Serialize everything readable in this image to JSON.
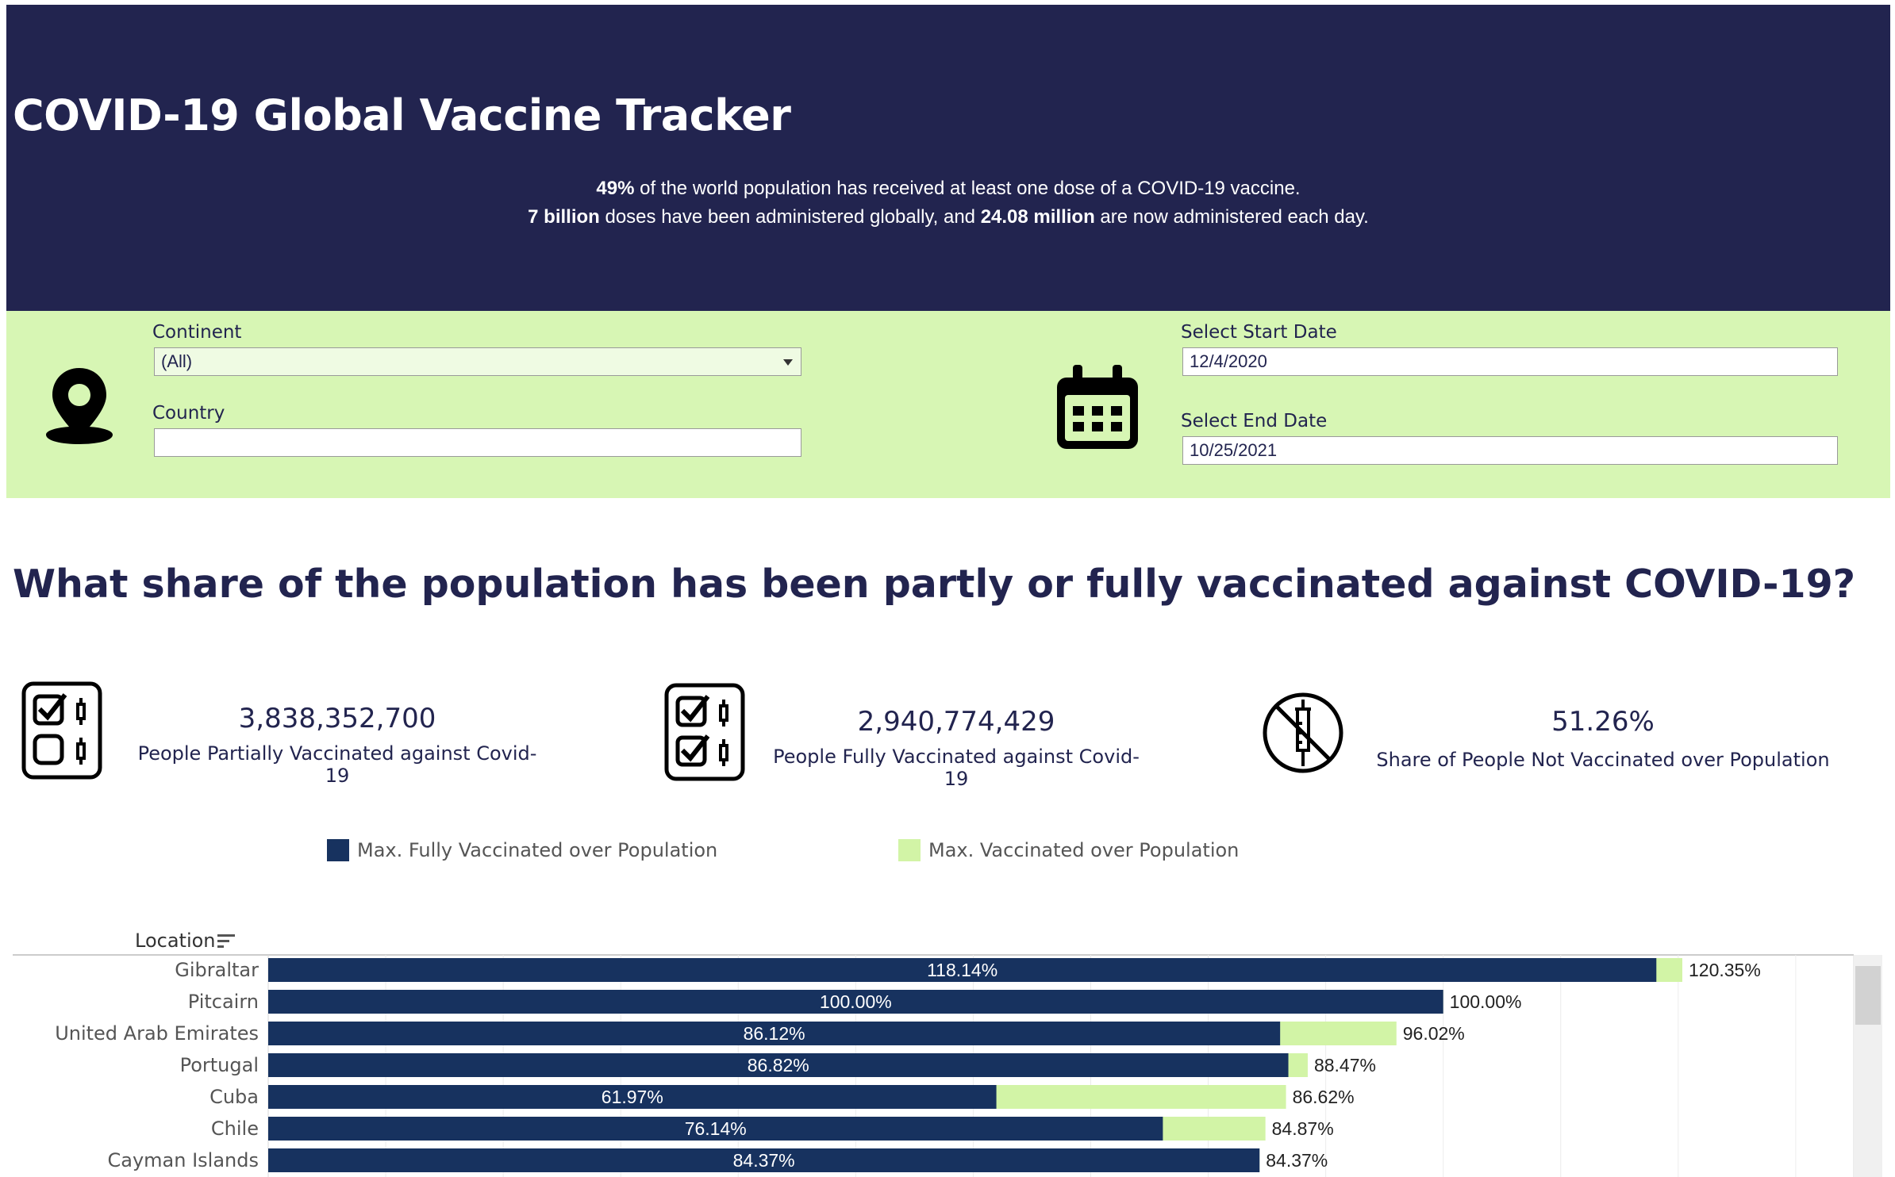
{
  "header": {
    "title": "COVID-19 Global Vaccine Tracker",
    "line1_pct": "49%",
    "line1_rest": " of the world population has received at least one dose of a COVID-19 vaccine.",
    "line2_doses": "7 billion",
    "line2_mid": " doses have been administered globally, and ",
    "line2_daily": "24.08 million",
    "line2_end": " are now administered each day."
  },
  "filters": {
    "continent_label": "Continent",
    "continent_value": "(All)",
    "country_label": "Country",
    "country_value": "",
    "start_label": "Select Start Date",
    "start_value": "12/4/2020",
    "end_label": "Select End Date",
    "end_value": "10/25/2021",
    "location_icon": "map-pin-icon",
    "calendar_icon": "calendar-icon"
  },
  "question": "What share of the population has been partly or fully vaccinated against COVID-19?",
  "kpis": [
    {
      "value": "3,838,352,700",
      "label": "People Partially Vaccinated against Covid-19",
      "icon": "partial-vaccine-checklist-icon"
    },
    {
      "value": "2,940,774,429",
      "label": "People Fully Vaccinated against Covid-19",
      "icon": "full-vaccine-checklist-icon"
    },
    {
      "value": "51.26%",
      "label": "Share of People Not Vaccinated over Population",
      "icon": "no-vaccine-icon"
    }
  ],
  "legend": [
    {
      "label": "Max. Fully Vaccinated over Population",
      "color": "#17325f"
    },
    {
      "label": "Max. Vaccinated over Population",
      "color": "#d2f4a6"
    }
  ],
  "chart_data": {
    "type": "bar",
    "orientation": "horizontal",
    "stacked": "overlay",
    "row_header": "Location",
    "categories": [
      "Gibraltar",
      "Pitcairn",
      "United Arab Emirates",
      "Portugal",
      "Cuba",
      "Chile",
      "Cayman Islands"
    ],
    "series": [
      {
        "name": "Max. Fully Vaccinated over Population",
        "color": "#17325f",
        "values": [
          118.14,
          100.0,
          86.12,
          86.82,
          61.97,
          76.14,
          84.37
        ]
      },
      {
        "name": "Max. Vaccinated over Population",
        "color": "#d2f4a6",
        "values": [
          120.35,
          100.0,
          96.02,
          88.47,
          86.62,
          84.87,
          84.37
        ]
      }
    ],
    "inner_labels": [
      "118.14%",
      "100.00%",
      "86.12%",
      "86.82%",
      "61.97%",
      "76.14%",
      "84.37%"
    ],
    "outer_labels": [
      "120.35%",
      "100.00%",
      "96.02%",
      "88.47%",
      "86.62%",
      "84.87%",
      "84.37%"
    ],
    "xlim": [
      0,
      135
    ],
    "grid": true
  }
}
